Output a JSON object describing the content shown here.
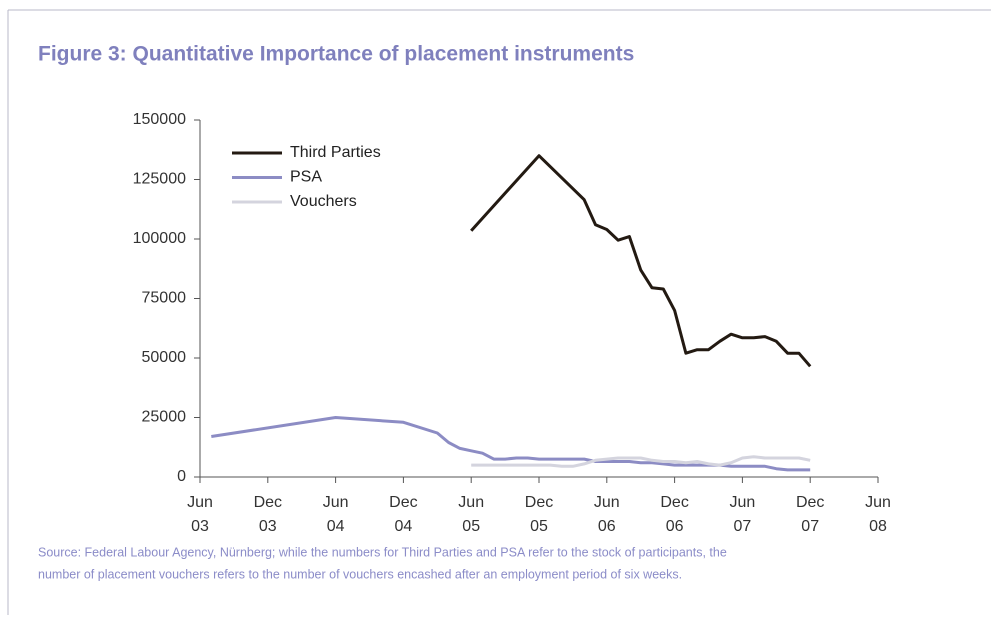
{
  "chart_data": {
    "type": "line",
    "title": "Figure 3: Quantitative Importance of placement instruments",
    "source": [
      "Source: Federal Labour Agency, Nürnberg; while the numbers for Third Parties and PSA refer to the stock of participants, the",
      "number of placement vouchers refers to the number of vouchers encashed after an employment period of six weeks."
    ],
    "ylim": [
      0,
      150000
    ],
    "yticks": [
      0,
      25000,
      50000,
      75000,
      100000,
      125000,
      150000
    ],
    "xlim": [
      "2003-06",
      "2008-06"
    ],
    "xticks": [
      {
        "value": "2003-06",
        "label": "Jun 03"
      },
      {
        "value": "2003-12",
        "label": "Dec 03"
      },
      {
        "value": "2004-06",
        "label": "Jun 04"
      },
      {
        "value": "2004-12",
        "label": "Dec 04"
      },
      {
        "value": "2005-06",
        "label": "Jun 05"
      },
      {
        "value": "2005-12",
        "label": "Dec 05"
      },
      {
        "value": "2006-06",
        "label": "Jun 06"
      },
      {
        "value": "2006-12",
        "label": "Dec 06"
      },
      {
        "value": "2007-06",
        "label": "Jun 07"
      },
      {
        "value": "2007-12",
        "label": "Dec 07"
      },
      {
        "value": "2008-06",
        "label": "Jun 08"
      }
    ],
    "legend": "top-left",
    "series": [
      {
        "name": "Third Parties",
        "color": "#231a12",
        "x": [
          "2005-06",
          "2005-12",
          "2006-04",
          "2006-05",
          "2006-06",
          "2006-07",
          "2006-08",
          "2006-09",
          "2006-10",
          "2006-11",
          "2006-12",
          "2007-01",
          "2007-02",
          "2007-03",
          "2007-04",
          "2007-05",
          "2007-06",
          "2007-07",
          "2007-08",
          "2007-09",
          "2007-10",
          "2007-11",
          "2007-12"
        ],
        "values": [
          103500,
          135000,
          116500,
          106000,
          104000,
          99500,
          101000,
          87000,
          79500,
          79000,
          70000,
          52000,
          53500,
          53500,
          57000,
          60000,
          58500,
          58500,
          59000,
          57000,
          52000,
          52000,
          46500
        ]
      },
      {
        "name": "PSA",
        "color": "#8c8cc4",
        "x": [
          "2003-07",
          "2004-06",
          "2004-12",
          "2005-03",
          "2005-04",
          "2005-05",
          "2005-06",
          "2005-07",
          "2005-08",
          "2005-09",
          "2005-10",
          "2005-11",
          "2005-12",
          "2006-01",
          "2006-02",
          "2006-03",
          "2006-04",
          "2006-05",
          "2006-06",
          "2006-07",
          "2006-08",
          "2006-09",
          "2006-10",
          "2006-11",
          "2006-12",
          "2007-01",
          "2007-02",
          "2007-03",
          "2007-04",
          "2007-05",
          "2007-06",
          "2007-07",
          "2007-08",
          "2007-09",
          "2007-10",
          "2007-11",
          "2007-12"
        ],
        "values": [
          17000,
          25000,
          23000,
          18500,
          14500,
          12000,
          11000,
          10000,
          7500,
          7500,
          8000,
          8000,
          7500,
          7500,
          7500,
          7500,
          7500,
          6500,
          6500,
          6500,
          6500,
          6000,
          6000,
          5500,
          5000,
          5000,
          5000,
          5000,
          5000,
          4500,
          4500,
          4500,
          4500,
          3500,
          3000,
          3000,
          3000
        ]
      },
      {
        "name": "Vouchers",
        "color": "#d4d4de",
        "x": [
          "2005-06",
          "2006-01",
          "2006-02",
          "2006-03",
          "2006-04",
          "2006-05",
          "2006-06",
          "2006-07",
          "2006-08",
          "2006-09",
          "2006-10",
          "2006-11",
          "2006-12",
          "2007-01",
          "2007-02",
          "2007-03",
          "2007-04",
          "2007-05",
          "2007-06",
          "2007-07",
          "2007-08",
          "2007-09",
          "2007-10",
          "2007-11",
          "2007-12"
        ],
        "values": [
          5000,
          5000,
          4500,
          4500,
          5500,
          7000,
          7500,
          8000,
          8000,
          8000,
          7000,
          6500,
          6500,
          6000,
          6500,
          5500,
          5000,
          6000,
          8000,
          8500,
          8000,
          8000,
          8000,
          8000,
          7000
        ]
      }
    ]
  }
}
